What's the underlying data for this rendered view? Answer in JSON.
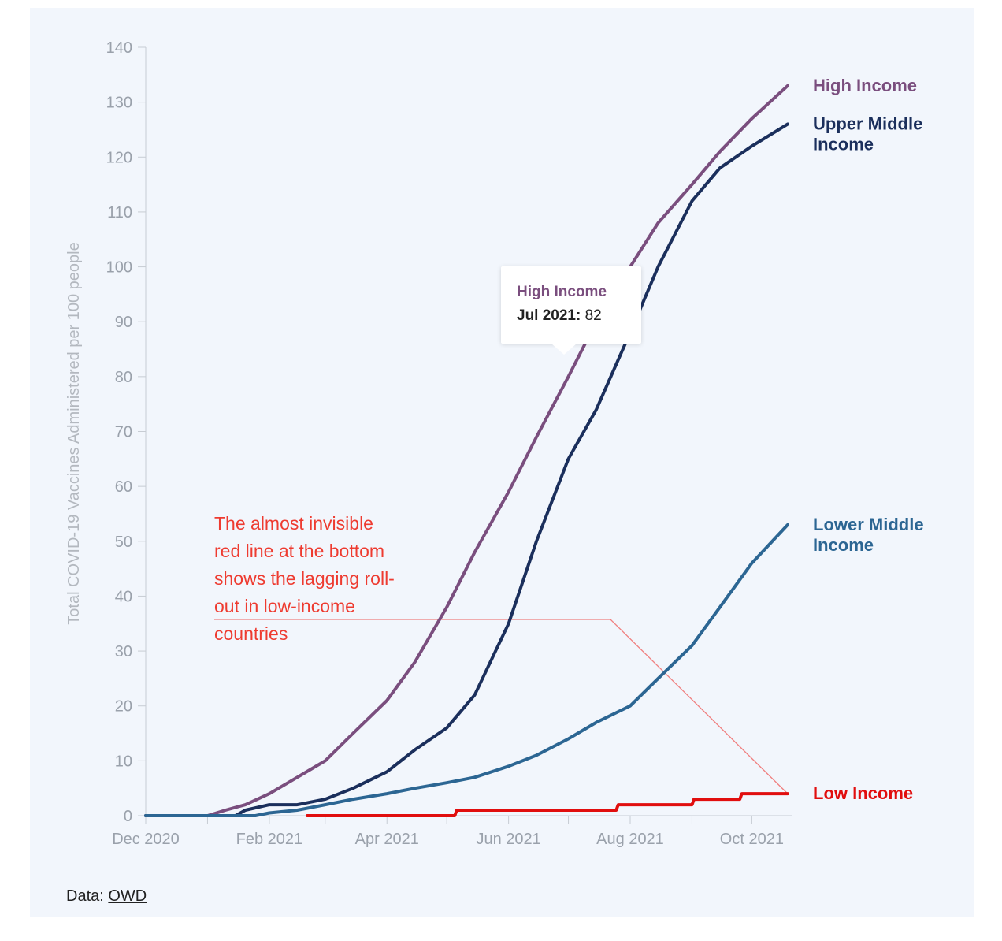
{
  "chart_data": {
    "type": "line",
    "ylabel": "Total COVID-19 Vaccines Administered per 100 people",
    "ylim": [
      0,
      140
    ],
    "yticks": [
      0,
      10,
      20,
      30,
      40,
      50,
      60,
      70,
      80,
      90,
      100,
      110,
      120,
      130,
      140
    ],
    "xlim": [
      "2020-12-01",
      "2021-10-21"
    ],
    "xticks": [
      {
        "date": "2020-12-01",
        "label": "Dec 2020"
      },
      {
        "date": "2021-02-01",
        "label": "Feb 2021"
      },
      {
        "date": "2021-04-01",
        "label": "Apr 2021"
      },
      {
        "date": "2021-06-01",
        "label": "Jun 2021"
      },
      {
        "date": "2021-08-01",
        "label": "Aug 2021"
      },
      {
        "date": "2021-10-01",
        "label": "Oct 2021"
      }
    ],
    "minor_xticks": [
      "2021-01-01",
      "2021-03-01",
      "2021-05-01",
      "2021-07-01",
      "2021-09-01"
    ],
    "series": [
      {
        "name": "High Income",
        "color": "#7a4e7e",
        "label_lines": [
          "High Income"
        ],
        "points": [
          [
            "2020-12-01",
            0
          ],
          [
            "2020-12-15",
            0
          ],
          [
            "2021-01-01",
            0
          ],
          [
            "2021-01-10",
            1
          ],
          [
            "2021-01-20",
            2
          ],
          [
            "2021-02-01",
            4
          ],
          [
            "2021-02-15",
            7
          ],
          [
            "2021-03-01",
            10
          ],
          [
            "2021-03-15",
            15
          ],
          [
            "2021-04-01",
            21
          ],
          [
            "2021-04-15",
            28
          ],
          [
            "2021-05-01",
            38
          ],
          [
            "2021-05-15",
            48
          ],
          [
            "2021-06-01",
            59
          ],
          [
            "2021-06-15",
            69
          ],
          [
            "2021-07-01",
            80
          ],
          [
            "2021-07-15",
            90
          ],
          [
            "2021-08-01",
            100
          ],
          [
            "2021-08-15",
            108
          ],
          [
            "2021-09-01",
            115
          ],
          [
            "2021-09-15",
            121
          ],
          [
            "2021-10-01",
            127
          ],
          [
            "2021-10-19",
            133
          ]
        ]
      },
      {
        "name": "Upper Middle Income",
        "color": "#1b2f5c",
        "label_lines": [
          "Upper Middle",
          "Income"
        ],
        "points": [
          [
            "2020-12-01",
            0
          ],
          [
            "2021-01-15",
            0
          ],
          [
            "2021-01-20",
            1
          ],
          [
            "2021-02-01",
            2
          ],
          [
            "2021-02-15",
            2
          ],
          [
            "2021-03-01",
            3
          ],
          [
            "2021-03-15",
            5
          ],
          [
            "2021-04-01",
            8
          ],
          [
            "2021-04-15",
            12
          ],
          [
            "2021-05-01",
            16
          ],
          [
            "2021-05-15",
            22
          ],
          [
            "2021-06-01",
            35
          ],
          [
            "2021-06-15",
            50
          ],
          [
            "2021-07-01",
            65
          ],
          [
            "2021-07-15",
            74
          ],
          [
            "2021-08-01",
            88
          ],
          [
            "2021-08-15",
            100
          ],
          [
            "2021-09-01",
            112
          ],
          [
            "2021-09-15",
            118
          ],
          [
            "2021-10-01",
            122
          ],
          [
            "2021-10-19",
            126
          ]
        ]
      },
      {
        "name": "Lower Middle Income",
        "color": "#2c6693",
        "label_lines": [
          "Lower Middle",
          "Income"
        ],
        "points": [
          [
            "2020-12-01",
            0
          ],
          [
            "2021-01-25",
            0
          ],
          [
            "2021-02-01",
            0.5
          ],
          [
            "2021-02-15",
            1
          ],
          [
            "2021-03-01",
            2
          ],
          [
            "2021-03-15",
            3
          ],
          [
            "2021-04-01",
            4
          ],
          [
            "2021-04-15",
            5
          ],
          [
            "2021-05-01",
            6
          ],
          [
            "2021-05-15",
            7
          ],
          [
            "2021-06-01",
            9
          ],
          [
            "2021-06-15",
            11
          ],
          [
            "2021-07-01",
            14
          ],
          [
            "2021-07-15",
            17
          ],
          [
            "2021-08-01",
            20
          ],
          [
            "2021-08-15",
            25
          ],
          [
            "2021-09-01",
            31
          ],
          [
            "2021-09-15",
            38
          ],
          [
            "2021-10-01",
            46
          ],
          [
            "2021-10-19",
            53
          ]
        ]
      },
      {
        "name": "Low Income",
        "color": "#e10e0e",
        "label_lines": [
          "Low Income"
        ],
        "points": [
          [
            "2021-02-20",
            0
          ],
          [
            "2021-05-05",
            0
          ],
          [
            "2021-05-06",
            1
          ],
          [
            "2021-07-25",
            1
          ],
          [
            "2021-07-26",
            2
          ],
          [
            "2021-09-01",
            2
          ],
          [
            "2021-09-02",
            3
          ],
          [
            "2021-09-25",
            3
          ],
          [
            "2021-09-26",
            4
          ],
          [
            "2021-10-19",
            4
          ]
        ]
      }
    ],
    "tooltip": {
      "series": "High Income",
      "period": "Jul 2021:",
      "value": "82"
    },
    "annotation": {
      "lines": [
        "The almost invisible",
        "red line at the bottom",
        "shows the lagging roll-",
        "out in low-income",
        "countries"
      ]
    }
  },
  "source": {
    "prefix": "Data:",
    "link": "OWD"
  },
  "colors": {
    "background": "#f2f6fc",
    "annotation": "#ee3b30",
    "axis": "#9aa1ab"
  }
}
